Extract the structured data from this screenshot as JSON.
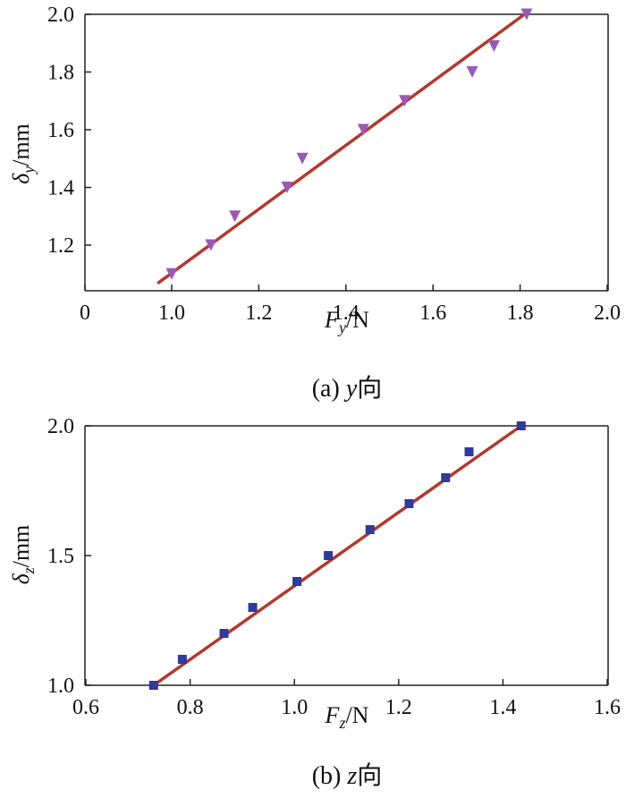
{
  "chart_data": [
    {
      "type": "scatter",
      "caption": "(a)  y向",
      "xlabel": "Fy/N",
      "ylabel": "δy/mm",
      "xlim": [
        0,
        2.0
      ],
      "ylim": [
        1.05,
        2.0
      ],
      "xticks": [
        "0",
        "1.0",
        "1.2",
        "1.4",
        "1.6",
        "1.8",
        "2.0"
      ],
      "yticks": [
        "1.2",
        "1.4",
        "1.6",
        "1.8",
        "2.0"
      ],
      "axis_break_x": true,
      "grid": false,
      "marker": "triangle-down",
      "marker_color": "#9b59b6",
      "line_color": "#b03a2e",
      "series": [
        {
          "points": [
            [
              1.0,
              1.1
            ],
            [
              1.09,
              1.2
            ],
            [
              1.145,
              1.3
            ],
            [
              1.265,
              1.4
            ],
            [
              1.3,
              1.5
            ],
            [
              1.44,
              1.6
            ],
            [
              1.535,
              1.7
            ],
            [
              1.69,
              1.8
            ],
            [
              1.74,
              1.89
            ],
            [
              1.815,
              2.0
            ]
          ]
        }
      ],
      "fit_line": [
        [
          0.97,
          1.07
        ],
        [
          1.81,
          2.0
        ]
      ]
    },
    {
      "type": "scatter",
      "caption": "(b)  z向",
      "xlabel": "Fz/N",
      "ylabel": "δz/mm",
      "xlim": [
        0.6,
        1.6
      ],
      "ylim": [
        1.0,
        2.0
      ],
      "xticks": [
        "0.6",
        "0.8",
        "1.0",
        "1.2",
        "1.4",
        "1.6"
      ],
      "yticks": [
        "1.0",
        "1.5",
        "2.0"
      ],
      "grid": false,
      "marker": "square",
      "marker_color": "#2e3a9c",
      "line_color": "#b03a2e",
      "series": [
        {
          "points": [
            [
              0.73,
              1.0
            ],
            [
              0.785,
              1.1
            ],
            [
              0.865,
              1.2
            ],
            [
              0.92,
              1.3
            ],
            [
              1.005,
              1.4
            ],
            [
              1.065,
              1.5
            ],
            [
              1.145,
              1.6
            ],
            [
              1.22,
              1.7
            ],
            [
              1.29,
              1.8
            ],
            [
              1.335,
              1.9
            ],
            [
              1.435,
              2.0
            ]
          ]
        }
      ],
      "fit_line": [
        [
          0.73,
          1.0
        ],
        [
          1.435,
          2.0
        ]
      ]
    }
  ]
}
